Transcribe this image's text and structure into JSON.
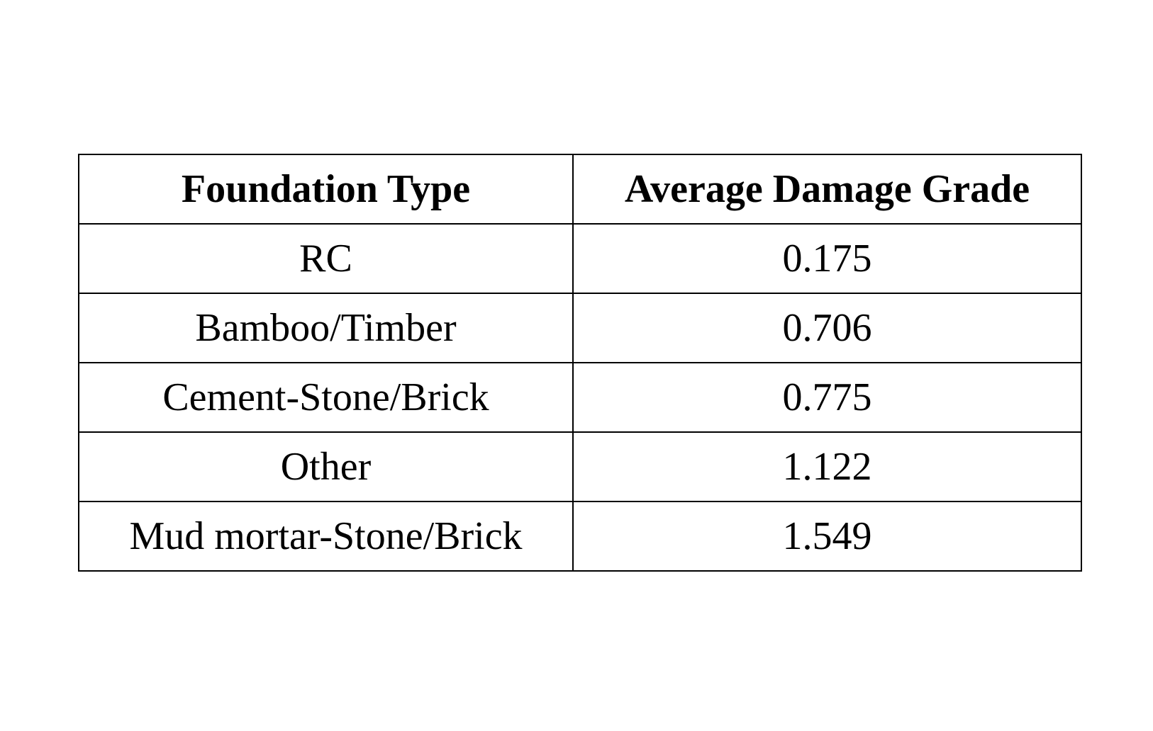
{
  "table": {
    "headers": [
      "Foundation Type",
      "Average Damage Grade"
    ],
    "rows": [
      [
        "RC",
        "0.175"
      ],
      [
        "Bamboo/Timber",
        "0.706"
      ],
      [
        "Cement-Stone/Brick",
        "0.775"
      ],
      [
        "Other",
        "1.122"
      ],
      [
        "Mud mortar-Stone/Brick",
        "1.549"
      ]
    ]
  }
}
